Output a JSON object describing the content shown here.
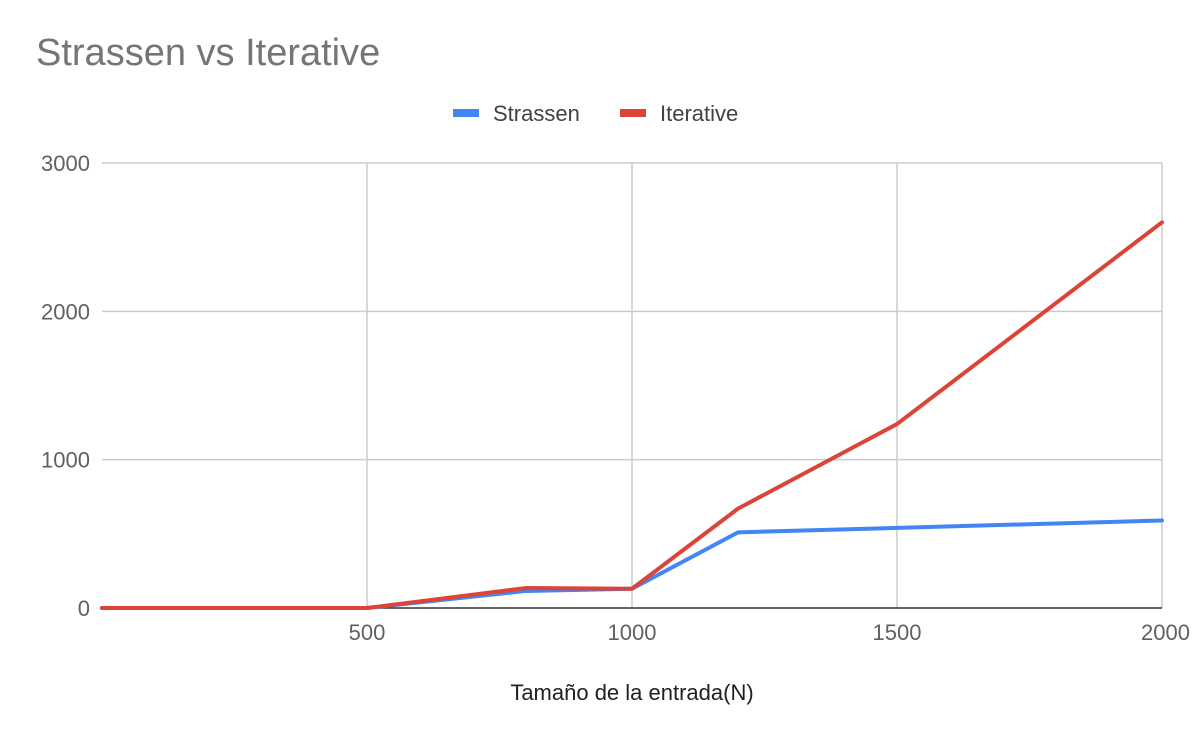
{
  "chart_data": {
    "type": "line",
    "title": "Strassen vs Iterative",
    "xlabel": "Tamaño de la entrada(N)",
    "ylabel": "",
    "xlim": [
      0,
      2000
    ],
    "ylim": [
      0,
      3000
    ],
    "x_ticks": [
      500,
      1000,
      1500,
      2000
    ],
    "y_ticks": [
      0,
      1000,
      2000,
      3000
    ],
    "grid": true,
    "legend_position": "top-center",
    "series": [
      {
        "name": "Strassen",
        "color": "#4285f4",
        "x": [
          0,
          500,
          800,
          1000,
          1200,
          1500,
          2000
        ],
        "y": [
          0,
          0,
          115,
          130,
          510,
          540,
          590
        ]
      },
      {
        "name": "Iterative",
        "color": "#db4437",
        "x": [
          0,
          500,
          800,
          1000,
          1200,
          1500,
          2000
        ],
        "y": [
          0,
          0,
          135,
          130,
          670,
          1240,
          2600
        ]
      }
    ]
  }
}
